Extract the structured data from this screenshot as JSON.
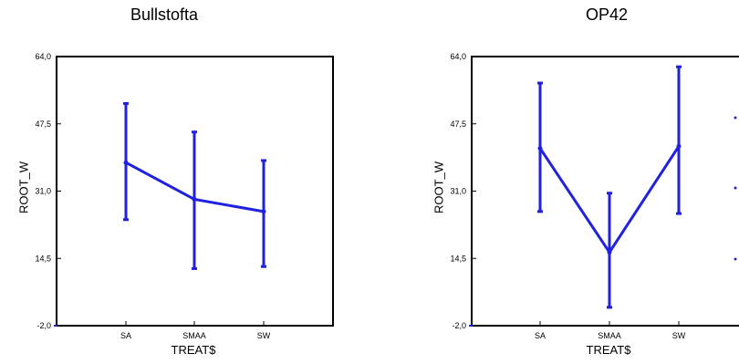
{
  "chart_data": [
    {
      "type": "line",
      "title": "Bullstofta",
      "xlabel": "TREAT$",
      "ylabel": "ROOT_W",
      "categories": [
        "SA",
        "SMAA",
        "SW"
      ],
      "ylim": [
        -2.0,
        64.0
      ],
      "yticks": [
        "-2,0",
        "14,5",
        "31,0",
        "47,5",
        "64,0"
      ],
      "series": [
        {
          "values": [
            38.0,
            29.0,
            26.0
          ],
          "error_low": [
            24.0,
            12.0,
            12.5
          ],
          "error_high": [
            52.5,
            45.5,
            38.5
          ]
        }
      ],
      "color": "#2020e0"
    },
    {
      "type": "line",
      "title": "OP42",
      "xlabel": "TREAT$",
      "ylabel": "ROOT_W",
      "categories": [
        "SA",
        "SMAA",
        "SW"
      ],
      "ylim": [
        -2.0,
        64.0
      ],
      "yticks": [
        "-2,0",
        "14,5",
        "31,0",
        "47,5",
        "64,0"
      ],
      "series": [
        {
          "values": [
            41.5,
            16.0,
            42.0
          ],
          "error_low": [
            26.0,
            2.5,
            25.5
          ],
          "error_high": [
            57.5,
            30.5,
            61.5
          ]
        }
      ],
      "color": "#2020e0"
    }
  ]
}
